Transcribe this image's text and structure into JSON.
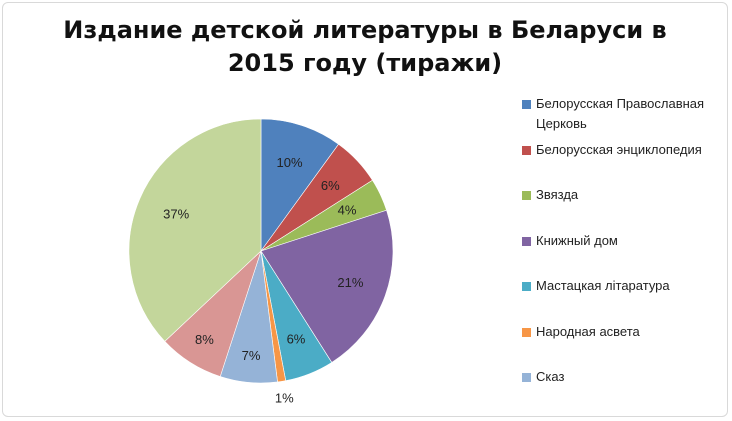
{
  "chart_data": {
    "type": "pie",
    "title": "Издание детской литературы в Беларуси в 2015 году (тиражи)",
    "legend_position": "right",
    "slices": [
      {
        "name": "Белорусская Православная Церковь",
        "value": 10,
        "label": "10%",
        "color": "#4f81bd"
      },
      {
        "name": "Белорусская энциклопедия",
        "value": 6,
        "label": "6%",
        "color": "#c0504d"
      },
      {
        "name": "Звязда",
        "value": 4,
        "label": "4%",
        "color": "#9bbb59"
      },
      {
        "name": "Книжный дом",
        "value": 21,
        "label": "21%",
        "color": "#8064a2"
      },
      {
        "name": "Мастацкая літаратура",
        "value": 6,
        "label": "6%",
        "color": "#4bacc6"
      },
      {
        "name": "Народная асвета",
        "value": 1,
        "label": "1%",
        "color": "#f79646"
      },
      {
        "name": "Сказ",
        "value": 7,
        "label": "7%",
        "color": "#95b3d7"
      },
      {
        "name": "",
        "value": 8,
        "label": "8%",
        "color": "#d99694"
      },
      {
        "name": "",
        "value": 37,
        "label": "37%",
        "color": "#c3d69b"
      }
    ]
  }
}
